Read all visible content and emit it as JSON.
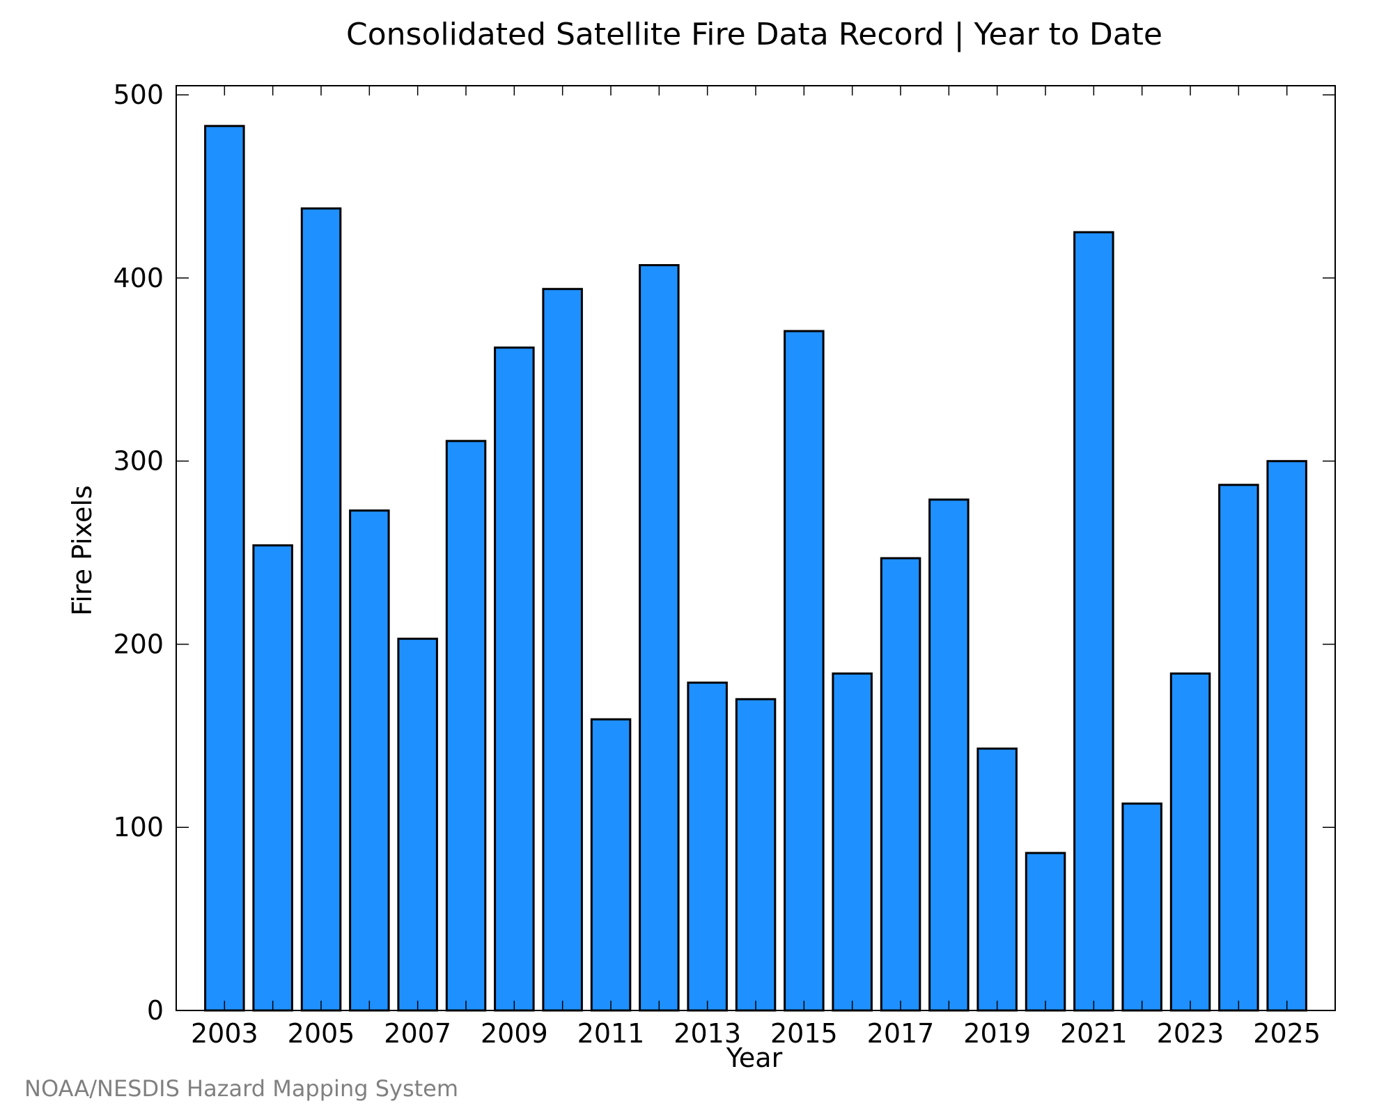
{
  "chart_data": {
    "type": "bar",
    "title": "Consolidated Satellite Fire Data Record | Year to Date",
    "xlabel": "Year",
    "ylabel": "Fire Pixels",
    "categories": [
      "2003",
      "2004",
      "2005",
      "2006",
      "2007",
      "2008",
      "2009",
      "2010",
      "2011",
      "2012",
      "2013",
      "2014",
      "2015",
      "2016",
      "2017",
      "2018",
      "2019",
      "2020",
      "2021",
      "2022",
      "2023",
      "2024",
      "2025"
    ],
    "values": [
      483,
      254,
      438,
      273,
      203,
      311,
      362,
      394,
      159,
      407,
      179,
      170,
      371,
      184,
      247,
      279,
      143,
      86,
      425,
      113,
      184,
      287,
      300
    ],
    "x_tick_labels": [
      "2003",
      "2005",
      "2007",
      "2009",
      "2011",
      "2013",
      "2015",
      "2017",
      "2019",
      "2021",
      "2023",
      "2025"
    ],
    "y_ticks": [
      0,
      100,
      200,
      300,
      400,
      500
    ],
    "ylim": [
      0,
      505
    ],
    "bar_color": "#1E90FF",
    "grid": false
  },
  "credit": "NOAA/NESDIS Hazard Mapping System"
}
